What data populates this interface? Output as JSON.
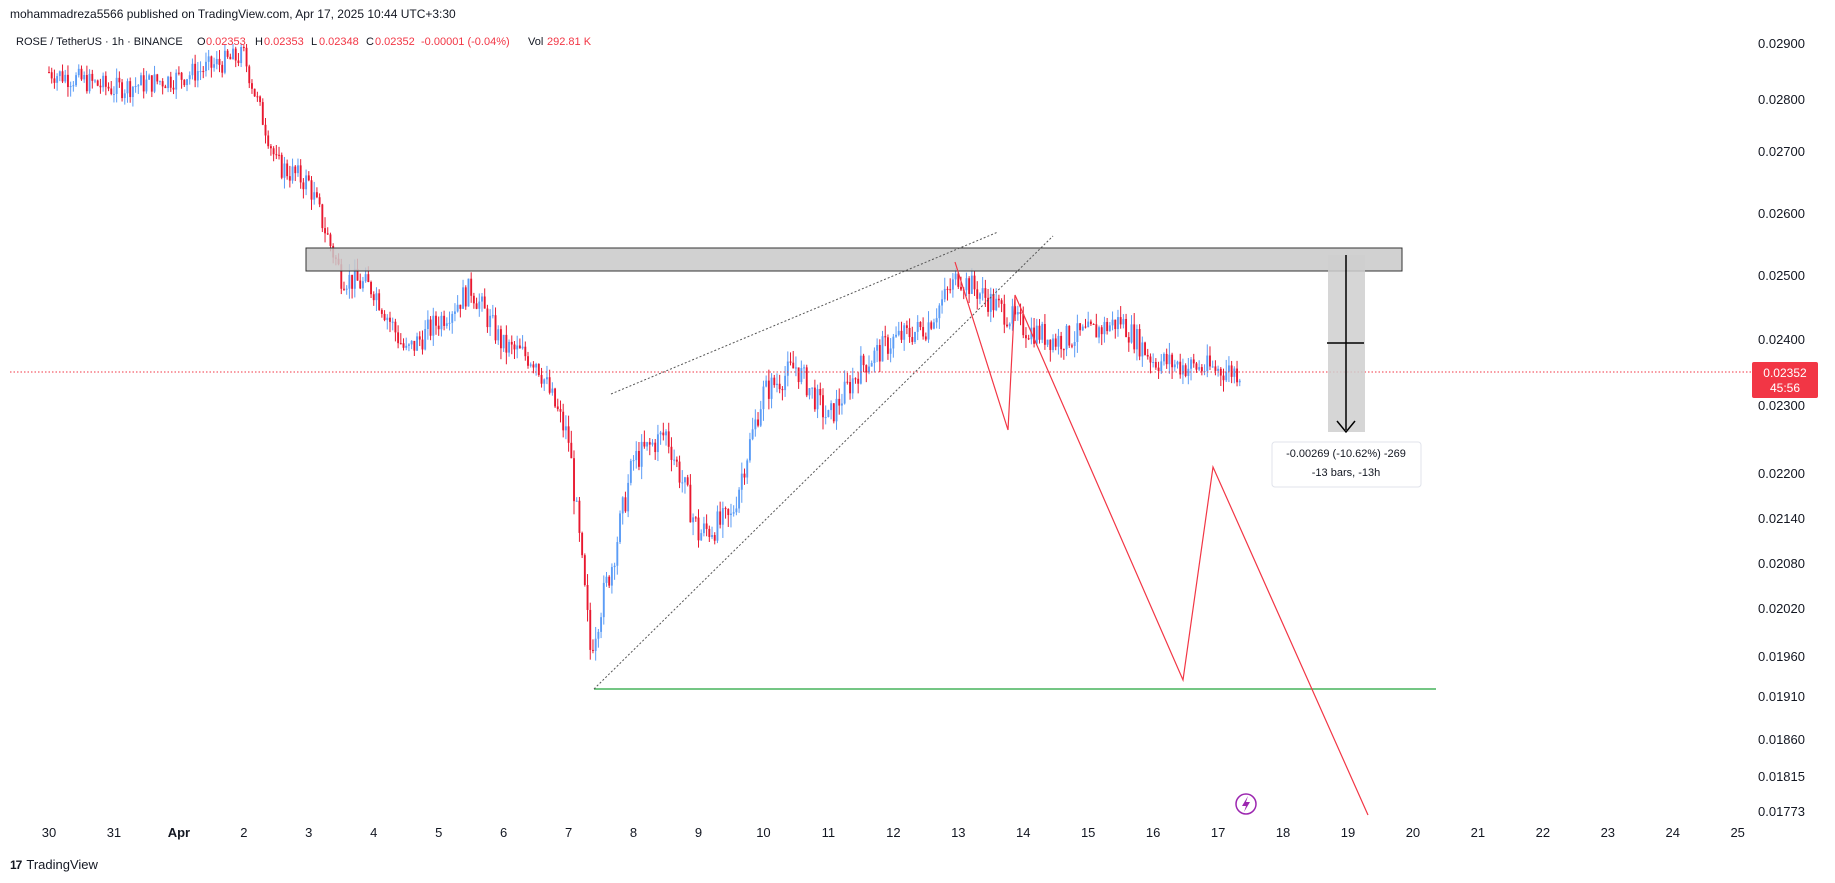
{
  "header": {
    "published_by": "mohammadreza5566 published on TradingView.com, Apr 17, 2025 10:44 UTC+3:30"
  },
  "legend": {
    "symbol": "ROSE / TetherUS · 1h · BINANCE",
    "open_label": "O",
    "open": "0.02353",
    "high_label": "H",
    "high": "0.02353",
    "low_label": "L",
    "low": "0.02348",
    "close_label": "C",
    "close": "0.02352",
    "change": "-0.00001 (-0.04%)",
    "vol_label": "Vol",
    "vol": "292.81 K"
  },
  "footer": {
    "logo_icon": "tradingview-logo-icon",
    "brand": "TradingView"
  },
  "colors": {
    "up": "#5b9cf6",
    "down": "#e8182f",
    "last_price_bg": "#f23645",
    "zone_fill": "#c9c9c9",
    "support_line": "#22a33a",
    "projection": "#f23645"
  },
  "measure": {
    "line1": "-0.00269 (-10.62%) -269",
    "line2": "-13 bars, -13h"
  },
  "last_price": {
    "value": "0.02352",
    "countdown": "45:56"
  },
  "chart_data": {
    "type": "candlestick",
    "symbol": "ROSE/USDT",
    "timeframe": "1h",
    "y_ticks": [
      "0.02900",
      "0.02800",
      "0.02700",
      "0.02600",
      "0.02500",
      "0.02400",
      "0.02300",
      "0.02200",
      "0.02140",
      "0.02080",
      "0.02020",
      "0.01960",
      "0.01910",
      "0.01860",
      "0.01815",
      "0.01773"
    ],
    "x_ticks": [
      "30",
      "31",
      "Apr",
      "2",
      "3",
      "4",
      "5",
      "6",
      "7",
      "8",
      "9",
      "10",
      "11",
      "12",
      "13",
      "14",
      "15",
      "16",
      "17",
      "18",
      "19",
      "20",
      "21",
      "22",
      "23",
      "24",
      "25"
    ],
    "price_path_approx": [
      {
        "x": "Mar 30",
        "y": 0.0285
      },
      {
        "x": "Mar 31",
        "y": 0.0282
      },
      {
        "x": "Apr 1",
        "y": 0.0284
      },
      {
        "x": "Apr 2",
        "y": 0.0288
      },
      {
        "x": "Apr 2 12:00",
        "y": 0.0268
      },
      {
        "x": "Apr 3",
        "y": 0.0265
      },
      {
        "x": "Apr 3 12:00",
        "y": 0.025
      },
      {
        "x": "Apr 4",
        "y": 0.0248
      },
      {
        "x": "Apr 4 12:00",
        "y": 0.0238
      },
      {
        "x": "Apr 5",
        "y": 0.0243
      },
      {
        "x": "Apr 5 12:00",
        "y": 0.0248
      },
      {
        "x": "Apr 6",
        "y": 0.0239
      },
      {
        "x": "Apr 6 12:00",
        "y": 0.0237
      },
      {
        "x": "Apr 7",
        "y": 0.0225
      },
      {
        "x": "Apr 7 08:00",
        "y": 0.0197
      },
      {
        "x": "Apr 7 16:00",
        "y": 0.0208
      },
      {
        "x": "Apr 8",
        "y": 0.0222
      },
      {
        "x": "Apr 8 12:00",
        "y": 0.0226
      },
      {
        "x": "Apr 9",
        "y": 0.0212
      },
      {
        "x": "Apr 9 12:00",
        "y": 0.0214
      },
      {
        "x": "Apr 10",
        "y": 0.0232
      },
      {
        "x": "Apr 10 12:00",
        "y": 0.0236
      },
      {
        "x": "Apr 11",
        "y": 0.0228
      },
      {
        "x": "Apr 11 12:00",
        "y": 0.0236
      },
      {
        "x": "Apr 12",
        "y": 0.024
      },
      {
        "x": "Apr 12 12:00",
        "y": 0.0242
      },
      {
        "x": "Apr 13",
        "y": 0.025
      },
      {
        "x": "Apr 13 12:00",
        "y": 0.0246
      },
      {
        "x": "Apr 14",
        "y": 0.0242
      },
      {
        "x": "Apr 14 12:00",
        "y": 0.024
      },
      {
        "x": "Apr 15",
        "y": 0.0241
      },
      {
        "x": "Apr 15 12:00",
        "y": 0.0243
      },
      {
        "x": "Apr 16",
        "y": 0.0237
      },
      {
        "x": "Apr 16 12:00",
        "y": 0.0236
      },
      {
        "x": "Apr 17 08:00",
        "y": 0.02352
      }
    ],
    "annotations": {
      "resistance_zone": {
        "y_top": 0.0254,
        "y_bottom": 0.0251,
        "from": "Apr 3",
        "to": "Apr 19 18:00"
      },
      "support_line": {
        "y": 0.0192,
        "from": "Apr 7 10:00",
        "to": "Apr 20 12:00"
      },
      "wedge_upper": [
        {
          "x": "Apr 7 16:00",
          "y": 0.0231
        },
        {
          "x": "Apr 13 16:00",
          "y": 0.0257
        }
      ],
      "wedge_lower": [
        {
          "x": "Apr 7 10:00",
          "y": 0.0192
        },
        {
          "x": "Apr 14 12:00",
          "y": 0.0256
        }
      ],
      "last_price_line": 0.02352
    }
  }
}
